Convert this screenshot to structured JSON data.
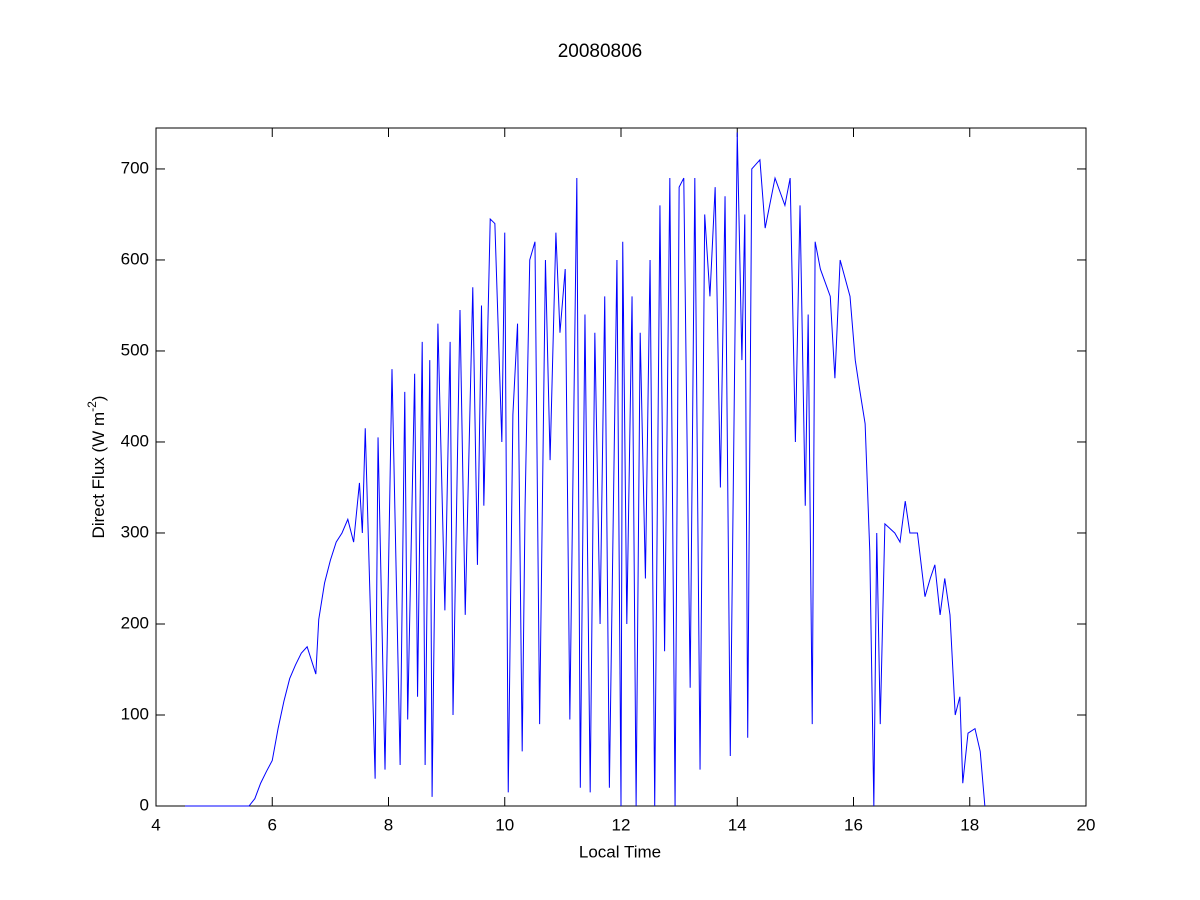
{
  "chart_data": {
    "type": "line",
    "title": "20080806",
    "xlabel": "Local Time",
    "ylabel": {
      "text": "Direct Flux (W m",
      "superscript": "-2",
      "suffix": ")"
    },
    "xlim": [
      4,
      20
    ],
    "xticks": [
      4,
      6,
      8,
      10,
      12,
      14,
      16,
      18,
      20
    ],
    "ylim": [
      0,
      745
    ],
    "yticks": [
      0,
      100,
      200,
      300,
      400,
      500,
      600,
      700
    ],
    "grid": false,
    "series": [
      {
        "color": "#0000ff",
        "x": [
          4.5,
          4.8,
          5.1,
          5.4,
          5.6,
          5.7,
          5.8,
          5.9,
          6.0,
          6.1,
          6.2,
          6.3,
          6.4,
          6.5,
          6.6,
          6.75,
          6.8,
          6.9,
          7.0,
          7.1,
          7.2,
          7.3,
          7.4,
          7.5,
          7.55,
          7.6,
          7.77,
          7.82,
          7.94,
          8.06,
          8.2,
          8.28,
          8.33,
          8.45,
          8.5,
          8.58,
          8.63,
          8.71,
          8.75,
          8.85,
          8.97,
          9.06,
          9.11,
          9.23,
          9.32,
          9.45,
          9.53,
          9.6,
          9.64,
          9.75,
          9.83,
          9.95,
          10.0,
          10.06,
          10.14,
          10.22,
          10.3,
          10.35,
          10.43,
          10.52,
          10.6,
          10.7,
          10.78,
          10.88,
          10.95,
          11.04,
          11.12,
          11.24,
          11.3,
          11.38,
          11.47,
          11.55,
          11.64,
          11.72,
          11.8,
          11.93,
          12.0,
          12.03,
          12.1,
          12.19,
          12.26,
          12.33,
          12.42,
          12.5,
          12.58,
          12.67,
          12.75,
          12.84,
          12.93,
          13.0,
          13.08,
          13.19,
          13.27,
          13.36,
          13.44,
          13.53,
          13.62,
          13.71,
          13.79,
          13.88,
          14.0,
          14.08,
          14.13,
          14.18,
          14.25,
          14.39,
          14.48,
          14.65,
          14.82,
          14.91,
          15.0,
          15.08,
          15.17,
          15.22,
          15.29,
          15.34,
          15.43,
          15.6,
          15.68,
          15.77,
          15.94,
          16.03,
          16.1,
          16.2,
          16.28,
          16.35,
          16.4,
          16.46,
          16.54,
          16.71,
          16.8,
          16.89,
          16.97,
          17.1,
          17.23,
          17.32,
          17.4,
          17.49,
          17.57,
          17.66,
          17.75,
          17.83,
          17.88,
          17.97,
          18.09,
          18.18,
          18.26
        ],
        "values": [
          0,
          0,
          0,
          0,
          0,
          8,
          25,
          38,
          50,
          85,
          115,
          140,
          155,
          168,
          175,
          145,
          205,
          245,
          270,
          290,
          300,
          315,
          290,
          355,
          300,
          415,
          30,
          405,
          40,
          480,
          45,
          455,
          95,
          475,
          120,
          510,
          45,
          490,
          10,
          530,
          215,
          510,
          100,
          545,
          210,
          570,
          265,
          550,
          330,
          645,
          640,
          400,
          630,
          15,
          430,
          530,
          60,
          330,
          600,
          620,
          90,
          600,
          380,
          630,
          520,
          590,
          95,
          690,
          20,
          540,
          15,
          520,
          200,
          560,
          20,
          600,
          0,
          620,
          200,
          560,
          0,
          520,
          250,
          600,
          0,
          660,
          170,
          690,
          0,
          680,
          690,
          130,
          690,
          40,
          650,
          560,
          680,
          350,
          670,
          55,
          740,
          490,
          650,
          75,
          700,
          710,
          635,
          690,
          660,
          690,
          400,
          660,
          330,
          540,
          90,
          620,
          590,
          560,
          470,
          600,
          560,
          490,
          460,
          420,
          280,
          0,
          300,
          90,
          310,
          300,
          290,
          335,
          300,
          300,
          230,
          250,
          265,
          210,
          250,
          210,
          100,
          120,
          25,
          80,
          85,
          60,
          0
        ]
      }
    ]
  }
}
